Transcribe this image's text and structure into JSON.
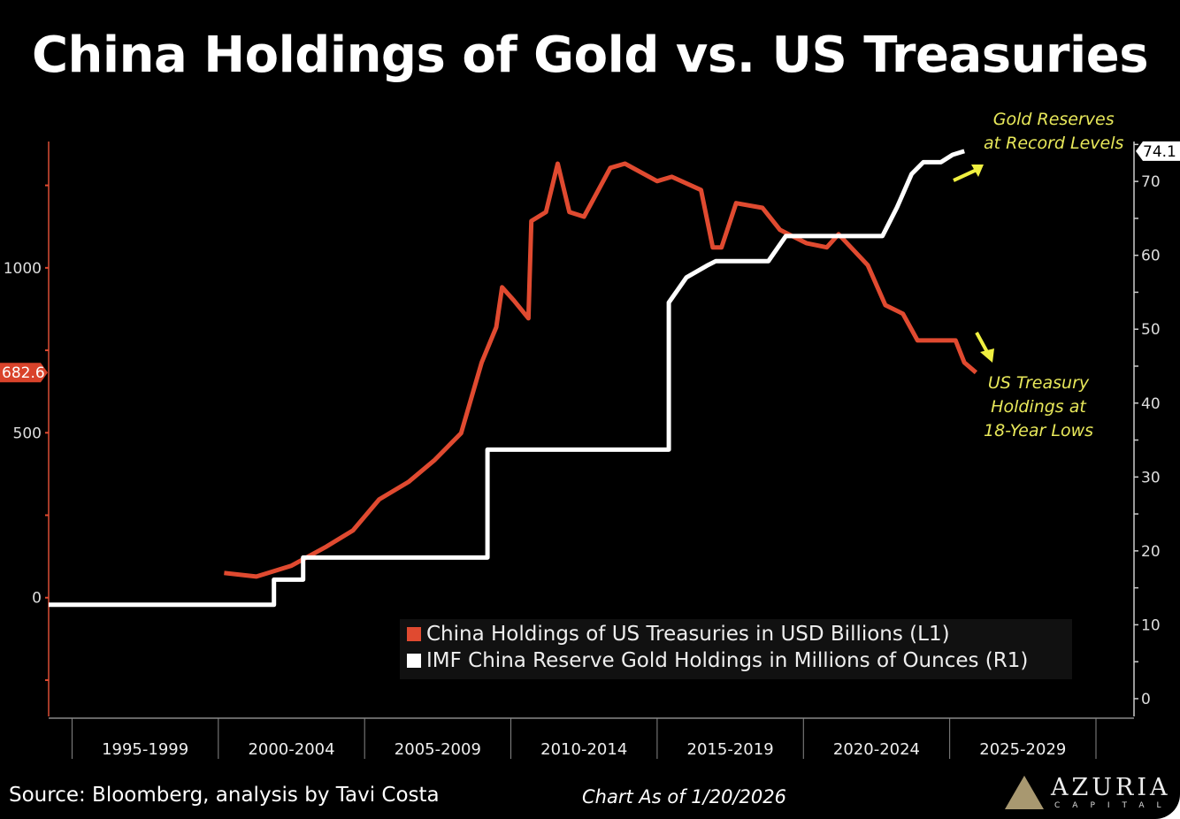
{
  "chart_data": {
    "type": "line",
    "title": "China Holdings of Gold vs. US Treasuries",
    "x_categories": [
      "1995-1999",
      "2000-2004",
      "2005-2009",
      "2010-2014",
      "2015-2019",
      "2020-2024",
      "2025-2029"
    ],
    "xlim": [
      1994.2,
      2031.3
    ],
    "left_axis": {
      "ticks": [
        0,
        500,
        1000
      ],
      "ylim": [
        -360,
        1383
      ],
      "last_value_label": "682.6",
      "color": "#e04a30"
    },
    "right_axis": {
      "ticks": [
        0,
        10,
        20,
        30,
        40,
        50,
        60,
        70
      ],
      "ylim": [
        -2.4,
        75.4
      ],
      "last_value_label": "74.1"
    },
    "series": [
      {
        "name": "China Holdings of US Treasuries in USD Billions (L1)",
        "axis": "left",
        "color": "#e04a30",
        "points": [
          [
            2000.2,
            75
          ],
          [
            2001.3,
            64
          ],
          [
            2002.5,
            97
          ],
          [
            2003.7,
            155
          ],
          [
            2004.6,
            204
          ],
          [
            2005.5,
            298
          ],
          [
            2006.5,
            351
          ],
          [
            2007.4,
            418
          ],
          [
            2008.3,
            499
          ],
          [
            2009.0,
            713
          ],
          [
            2009.5,
            820
          ],
          [
            2009.7,
            941
          ],
          [
            2010.1,
            901
          ],
          [
            2010.6,
            847
          ],
          [
            2010.7,
            1142
          ],
          [
            2011.2,
            1169
          ],
          [
            2011.6,
            1316
          ],
          [
            2012.0,
            1169
          ],
          [
            2012.5,
            1155
          ],
          [
            2013.4,
            1303
          ],
          [
            2013.9,
            1316
          ],
          [
            2015.0,
            1263
          ],
          [
            2015.5,
            1276
          ],
          [
            2016.5,
            1236
          ],
          [
            2016.9,
            1062
          ],
          [
            2017.2,
            1062
          ],
          [
            2017.7,
            1196
          ],
          [
            2018.6,
            1182
          ],
          [
            2019.2,
            1115
          ],
          [
            2020.1,
            1075
          ],
          [
            2020.8,
            1062
          ],
          [
            2021.2,
            1102
          ],
          [
            2022.2,
            1008
          ],
          [
            2022.8,
            887
          ],
          [
            2023.4,
            861
          ],
          [
            2023.9,
            780
          ],
          [
            2024.3,
            780
          ],
          [
            2025.2,
            780
          ],
          [
            2025.5,
            713
          ],
          [
            2025.9,
            682.6
          ]
        ]
      },
      {
        "name": "IMF China Reserve Gold Holdings in Millions of Ounces (R1)",
        "axis": "right",
        "color": "#ffffff",
        "points": [
          [
            1994.2,
            12.7
          ],
          [
            2001.9,
            12.7
          ],
          [
            2001.9,
            16.1
          ],
          [
            2002.9,
            16.1
          ],
          [
            2002.9,
            19.1
          ],
          [
            2009.2,
            19.1
          ],
          [
            2009.2,
            33.7
          ],
          [
            2015.4,
            33.7
          ],
          [
            2015.4,
            53.6
          ],
          [
            2016.0,
            57.0
          ],
          [
            2016.7,
            58.6
          ],
          [
            2017.0,
            59.2
          ],
          [
            2018.8,
            59.2
          ],
          [
            2019.4,
            62.6
          ],
          [
            2022.7,
            62.6
          ],
          [
            2023.2,
            66.5
          ],
          [
            2023.7,
            71.0
          ],
          [
            2024.1,
            72.6
          ],
          [
            2024.7,
            72.6
          ],
          [
            2025.1,
            73.6
          ],
          [
            2025.5,
            74.1
          ]
        ]
      }
    ],
    "annotations": {
      "gold": [
        "Gold Reserves",
        "at Record Levels"
      ],
      "treasury": [
        "US Treasury",
        "Holdings at",
        "18-Year Lows"
      ]
    },
    "legend_position": "bottom-right"
  },
  "footer": {
    "source": "Source: Bloomberg, analysis by Tavi Costa",
    "as_of": "Chart As of 1/20/2026"
  },
  "logo": {
    "name": "AZURIA",
    "sub": "CAPITAL"
  }
}
